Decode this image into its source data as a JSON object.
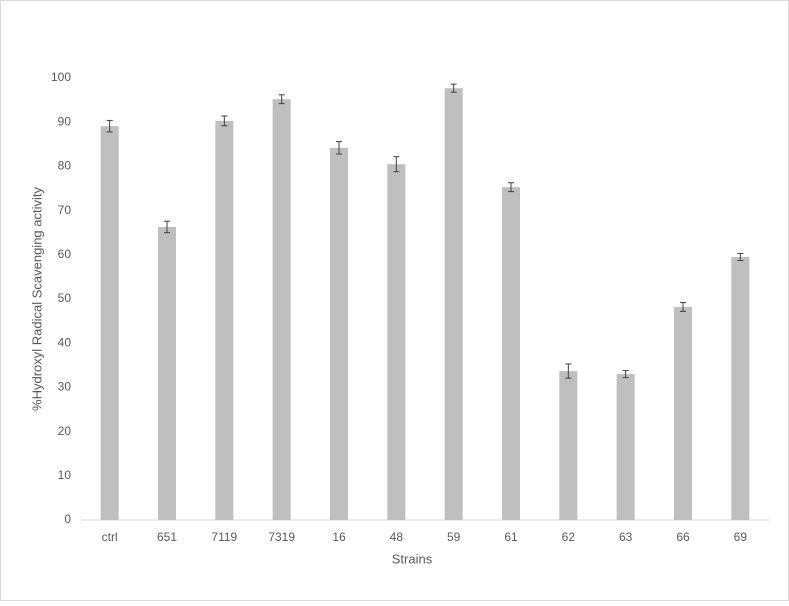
{
  "chart_data": {
    "type": "bar",
    "x_label": "Strains",
    "y_label": "%Hydroxyl Radical Scavenging activity",
    "categories": [
      "ctrl",
      "651",
      "7119",
      "7319",
      "16",
      "48",
      "59",
      "61",
      "62",
      "63",
      "66",
      "69"
    ],
    "values": [
      89.1,
      66.3,
      90.3,
      95.2,
      84.2,
      80.5,
      97.7,
      75.3,
      33.7,
      33.0,
      48.2,
      59.5
    ],
    "errors": [
      1.3,
      1.3,
      1.1,
      1.0,
      1.4,
      1.7,
      0.9,
      1.0,
      1.6,
      0.8,
      1.0,
      0.8
    ],
    "color": "#bfbfbf",
    "ylim": [
      0,
      100
    ],
    "yticks": [
      0,
      10,
      20,
      30,
      40,
      50,
      60,
      70,
      80,
      90,
      100
    ],
    "grid": false
  }
}
